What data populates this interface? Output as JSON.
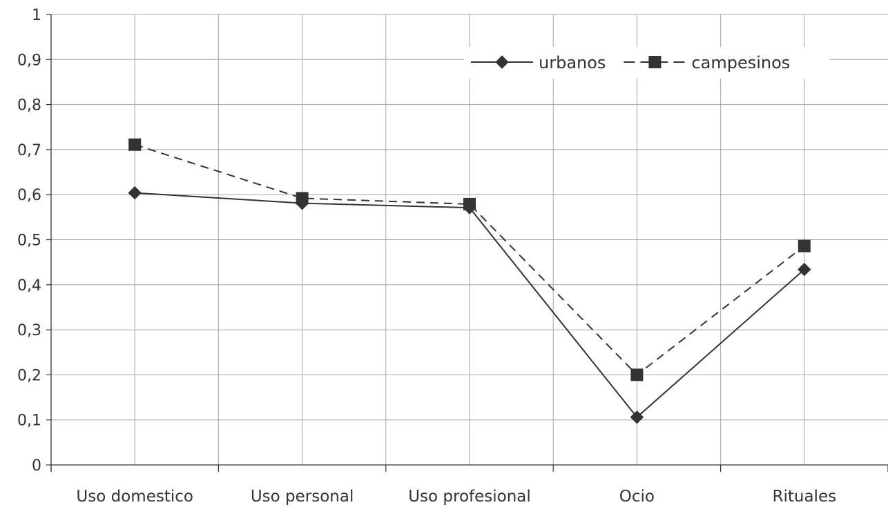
{
  "chart_data": {
    "type": "line",
    "categories": [
      "Uso domestico",
      "Uso personal",
      "Uso profesional",
      "Ocio",
      "Rituales"
    ],
    "series": [
      {
        "name": "urbanos",
        "values": [
          0.604,
          0.581,
          0.571,
          0.106,
          0.434
        ],
        "line_style": "solid",
        "marker": "diamond"
      },
      {
        "name": "campesinos",
        "values": [
          0.711,
          0.592,
          0.579,
          0.2,
          0.486
        ],
        "line_style": "dashed",
        "marker": "square"
      }
    ],
    "y_ticks": [
      "0",
      "0,1",
      "0,2",
      "0,3",
      "0,4",
      "0,5",
      "0,6",
      "0,7",
      "0,8",
      "0,9",
      "1"
    ],
    "ylim": [
      0,
      1
    ],
    "title": "",
    "xlabel": "",
    "ylabel": "",
    "grid": true,
    "legend_position": "top-right",
    "colors": {
      "series": "#333333",
      "grid": "#a6a6a6",
      "axis": "#333333",
      "background": "#ffffff"
    }
  }
}
